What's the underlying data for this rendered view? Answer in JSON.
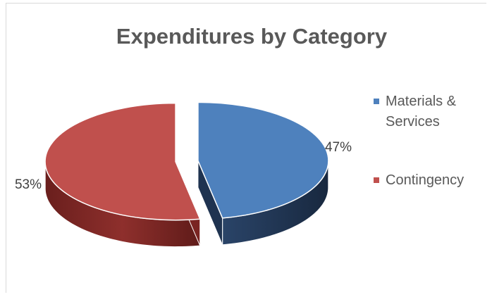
{
  "chart_data": {
    "type": "pie",
    "title": "Expenditures by Category",
    "slices": [
      {
        "label": "Materials & Services",
        "legend_lines": [
          "Materials &",
          "Services"
        ],
        "value": 47,
        "data_label": "47%",
        "color": "#4e81bd",
        "side_color": "#1f3350"
      },
      {
        "label": "Contingency",
        "legend_lines": [
          "Contingency"
        ],
        "value": 53,
        "data_label": "53%",
        "color": "#c0504d",
        "side_color": "#7a2422"
      }
    ],
    "legend_position": "right",
    "exploded": true,
    "three_d": true
  }
}
